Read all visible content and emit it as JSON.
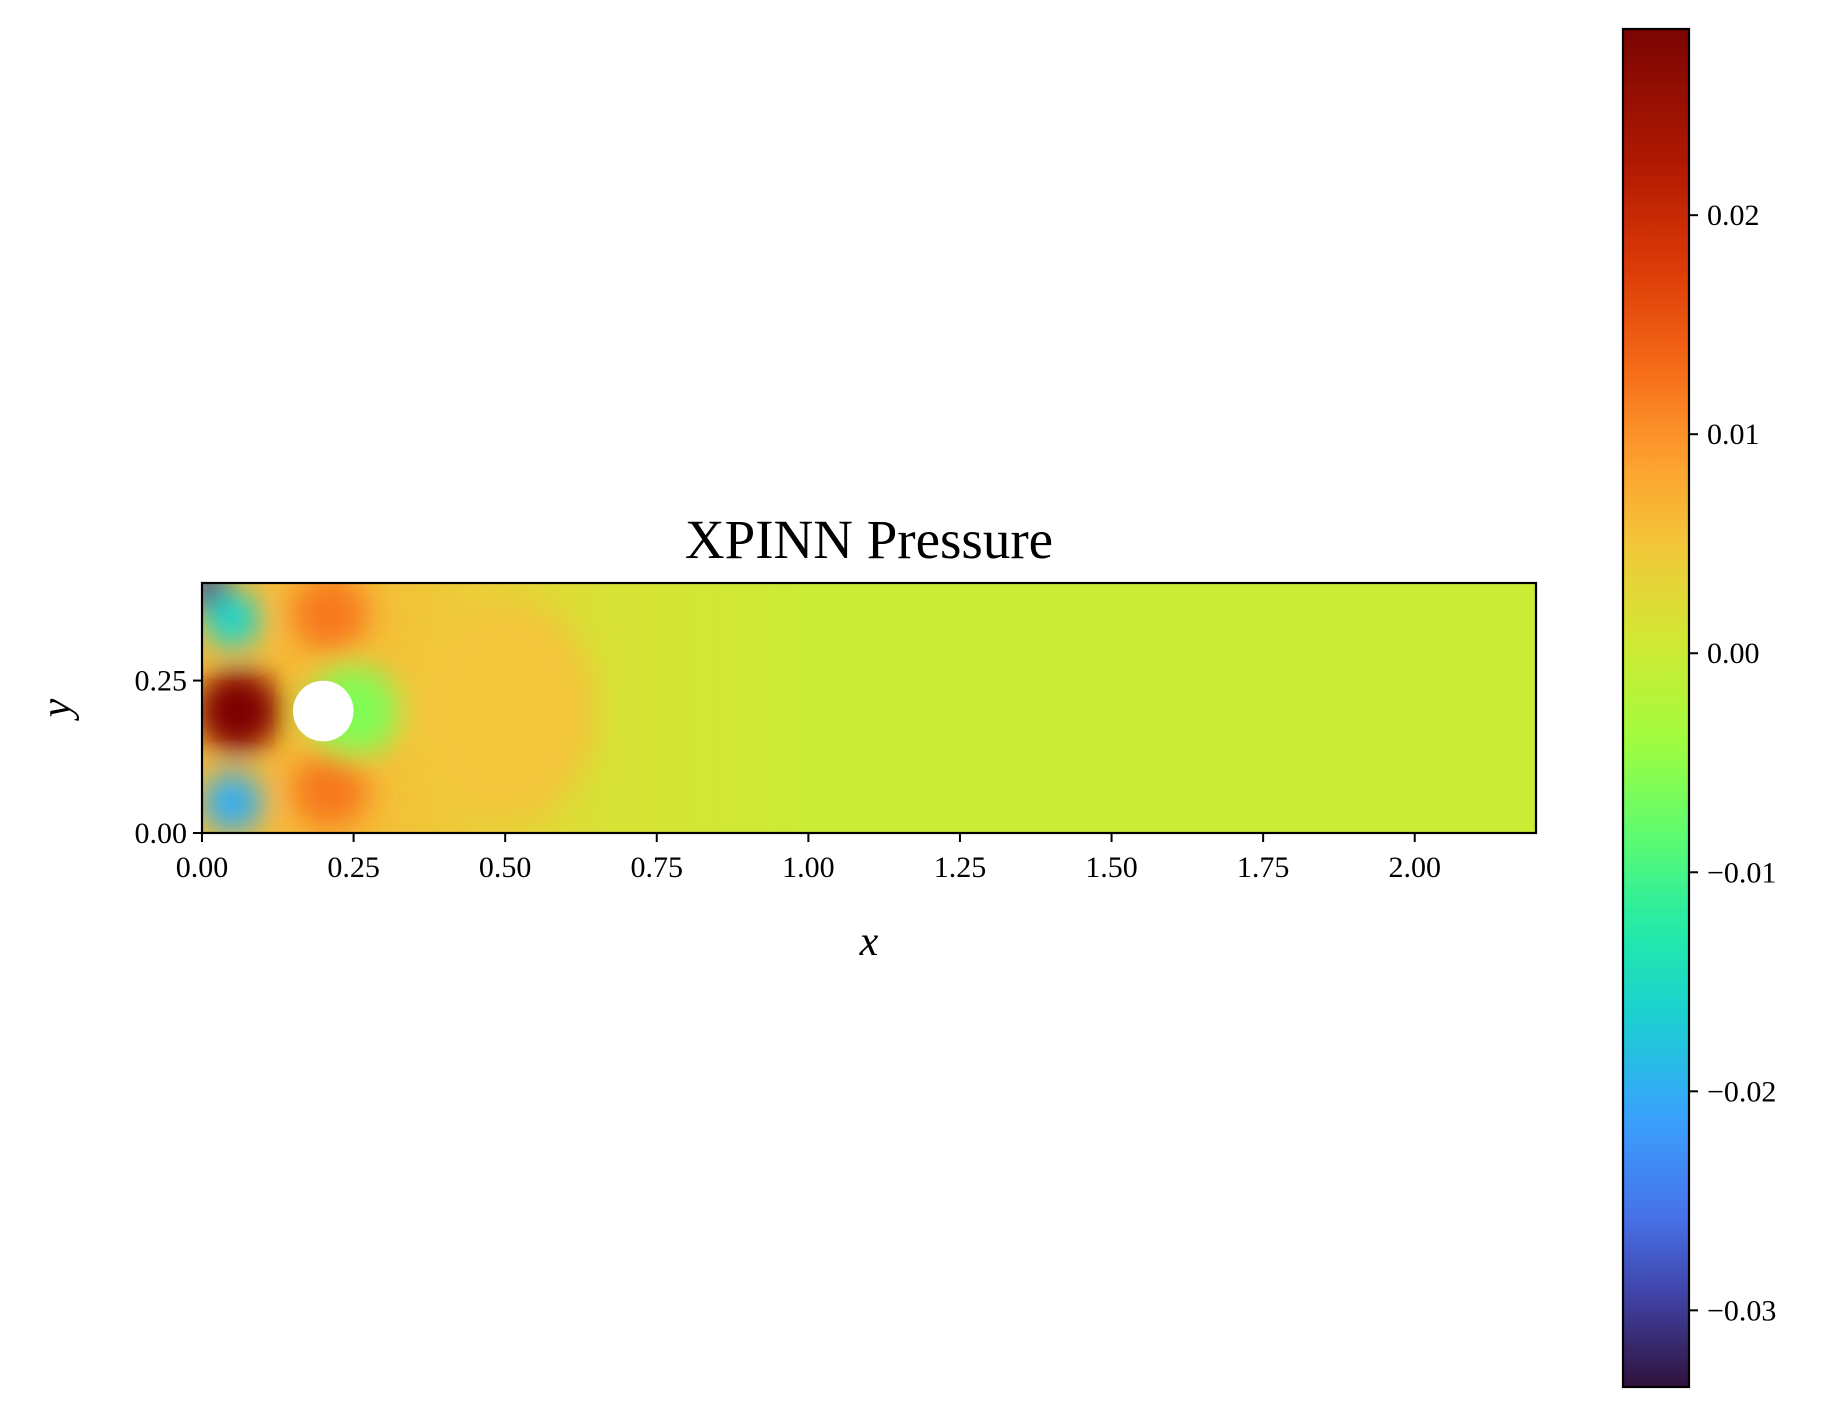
{
  "chart_data": [
    {
      "type": "heatmap",
      "title": "XPINN Pressure",
      "xlabel": "x",
      "ylabel": "y",
      "xlim": [
        0.0,
        2.2
      ],
      "ylim": [
        0.0,
        0.41
      ],
      "x_ticks": [
        "0.00",
        "0.25",
        "0.50",
        "0.75",
        "1.00",
        "1.25",
        "1.50",
        "1.75",
        "2.00"
      ],
      "y_ticks": [
        "0.00",
        "0.25"
      ],
      "obstacle": {
        "shape": "circle",
        "center": [
          0.2,
          0.2
        ],
        "radius": 0.05,
        "color": "#ffffff"
      },
      "field_features": [
        {
          "x": 0.06,
          "y": 0.2,
          "value": 0.028,
          "note": "high-pressure region upstream of cylinder"
        },
        {
          "x": 0.01,
          "y": 0.4,
          "value": -0.03
        },
        {
          "x": 0.05,
          "y": 0.05,
          "value": -0.02
        },
        {
          "x": 0.05,
          "y": 0.35,
          "value": -0.016
        },
        {
          "x": 0.21,
          "y": 0.07,
          "value": 0.012
        },
        {
          "x": 0.21,
          "y": 0.36,
          "value": 0.012
        },
        {
          "x": 0.25,
          "y": 0.2,
          "value": -0.006
        },
        {
          "x": 0.5,
          "y": 0.2,
          "value": 0.005
        },
        {
          "x": 1.3,
          "y": 0.2,
          "value": 0.0
        }
      ],
      "colormap": "turbo",
      "colorbar": {
        "vmin": -0.0335,
        "vmax": 0.0285,
        "ticks": [
          -0.03,
          -0.02,
          -0.01,
          0.0,
          0.01,
          0.02
        ],
        "tick_labels": [
          "−0.03",
          "−0.02",
          "−0.01",
          "0.00",
          "0.01",
          "0.02"
        ],
        "placement": "right"
      },
      "grid": false
    }
  ]
}
